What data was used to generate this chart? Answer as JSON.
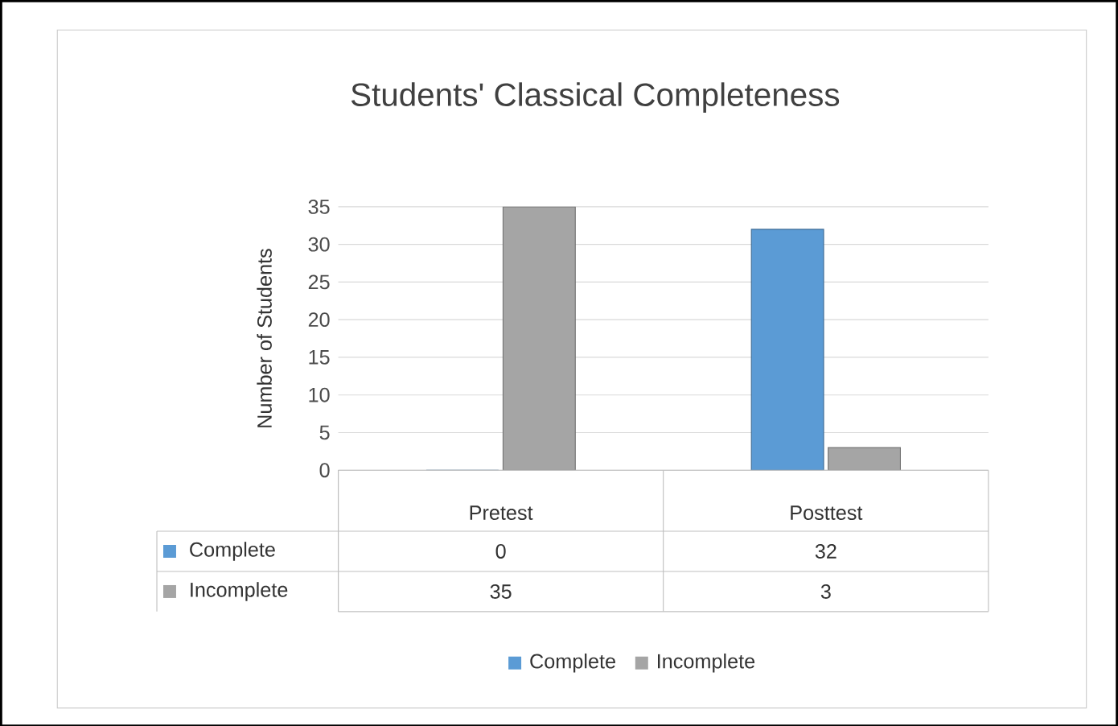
{
  "chart_data": {
    "type": "bar",
    "title": "Students' Classical Completeness",
    "ylabel": "Number  of Students",
    "categories": [
      "Pretest",
      "Posttest"
    ],
    "series": [
      {
        "name": "Complete",
        "color": "#5b9bd5",
        "values": [
          0,
          32
        ]
      },
      {
        "name": "Incomplete",
        "color": "#a5a5a5",
        "values": [
          35,
          3
        ]
      }
    ],
    "ylim": [
      0,
      35
    ],
    "yticks": [
      0,
      5,
      10,
      15,
      20,
      25,
      30,
      35
    ],
    "grid": "y",
    "legend": "bottom",
    "data_labels": true
  }
}
